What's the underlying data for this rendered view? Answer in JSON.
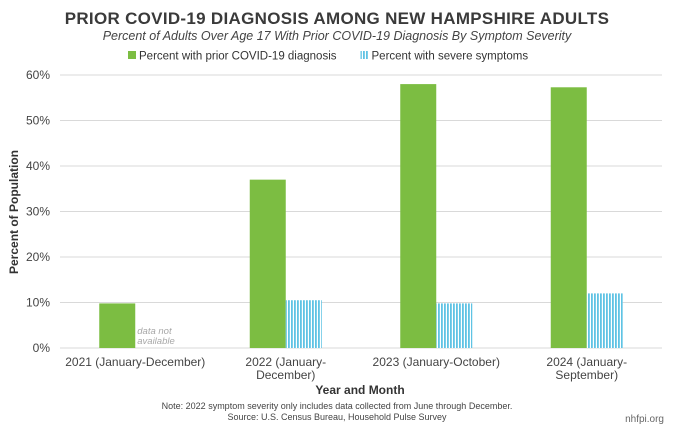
{
  "chart_data": {
    "type": "bar",
    "title": "PRIOR COVID-19 DIAGNOSIS AMONG NEW HAMPSHIRE ADULTS",
    "subtitle": "Percent of Adults Over Age 17 With Prior COVID-19 Diagnosis By Symptom Severity",
    "xlabel": "Year and Month",
    "ylabel": "Percent of Population",
    "ylim": [
      0,
      60
    ],
    "yticks": [
      "0%",
      "10%",
      "20%",
      "30%",
      "40%",
      "50%",
      "60%"
    ],
    "grid": true,
    "legend_position": "top",
    "categories": [
      [
        "2021 (January-December)"
      ],
      [
        "2022 (January-",
        "December)"
      ],
      [
        "2023 (January-October)"
      ],
      [
        "2024 (January-",
        "September)"
      ]
    ],
    "series": [
      {
        "name": "Percent with prior COVID-19 diagnosis",
        "color": "#7cbd42",
        "pattern": "solid",
        "values": [
          9.8,
          37.0,
          58.0,
          57.3
        ]
      },
      {
        "name": "Percent with severe symptoms",
        "color": "#5fc3e4",
        "pattern": "vertical-stripes",
        "values": [
          null,
          10.5,
          9.8,
          12.0
        ]
      }
    ],
    "annotations": [
      {
        "category_index": 0,
        "series_index": 1,
        "lines": [
          "data not",
          "available"
        ]
      }
    ],
    "notes": [
      "Note: 2022 symptom severity only includes data collected from June through December.",
      "Source: U.S. Census Bureau, Household Pulse Survey"
    ],
    "brand": "nhfpi.org"
  }
}
